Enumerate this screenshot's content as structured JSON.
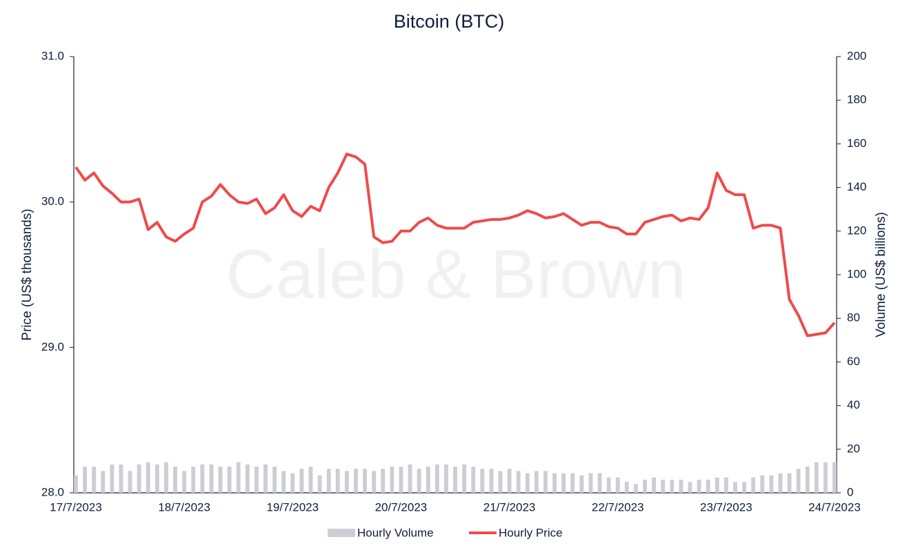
{
  "chart_data": {
    "type": "combo",
    "title": "Bitcoin (BTC)",
    "watermark": "Caleb & Brown",
    "y_label": "Price (US$ thousands)",
    "y2_label": "Volume (US$ billions)",
    "categories": [
      "17/7/2023",
      null,
      null,
      null,
      null,
      null,
      null,
      null,
      null,
      null,
      null,
      null,
      "18/7/2023",
      null,
      null,
      null,
      null,
      null,
      null,
      null,
      null,
      null,
      null,
      null,
      "19/7/2023",
      null,
      null,
      null,
      null,
      null,
      null,
      null,
      null,
      null,
      null,
      null,
      "20/7/2023",
      null,
      null,
      null,
      null,
      null,
      null,
      null,
      null,
      null,
      null,
      null,
      "21/7/2023",
      null,
      null,
      null,
      null,
      null,
      null,
      null,
      null,
      null,
      null,
      null,
      "22/7/2023",
      null,
      null,
      null,
      null,
      null,
      null,
      null,
      null,
      null,
      null,
      null,
      "23/7/2023",
      null,
      null,
      null,
      null,
      null,
      null,
      null,
      null,
      null,
      null,
      null,
      "24/7/2023"
    ],
    "series": [
      {
        "name": "Hourly Volume",
        "type": "bar",
        "axis": "y2",
        "color": "#cdced4",
        "values": [
          8,
          12,
          12,
          10,
          13,
          13,
          10,
          13,
          14,
          13,
          14,
          12,
          10,
          12,
          13,
          13,
          12,
          12,
          14,
          13,
          12,
          13,
          12,
          10,
          9,
          11,
          12,
          8,
          11,
          11,
          10,
          11,
          11,
          10,
          11,
          12,
          12,
          13,
          11,
          12,
          13,
          13,
          12,
          13,
          12,
          11,
          11,
          10,
          11,
          10,
          9,
          10,
          10,
          9,
          9,
          9,
          8,
          9,
          9,
          7,
          7,
          5,
          4,
          6,
          7,
          6,
          6,
          6,
          5,
          6,
          6,
          7,
          7,
          5,
          5,
          7,
          8,
          8,
          9,
          9,
          11,
          12,
          14,
          14,
          14
        ]
      },
      {
        "name": "Hourly Price",
        "type": "line",
        "color": "#f04a4a",
        "values": [
          30.24,
          30.15,
          30.2,
          30.11,
          30.06,
          30.0,
          30.0,
          30.02,
          29.81,
          29.86,
          29.76,
          29.73,
          29.78,
          29.82,
          30.0,
          30.04,
          30.12,
          30.05,
          30.0,
          29.99,
          30.02,
          29.92,
          29.96,
          30.05,
          29.94,
          29.9,
          29.97,
          29.94,
          30.1,
          30.2,
          30.33,
          30.31,
          30.26,
          29.76,
          29.72,
          29.73,
          29.8,
          29.8,
          29.86,
          29.89,
          29.84,
          29.82,
          29.82,
          29.82,
          29.86,
          29.87,
          29.88,
          29.88,
          29.89,
          29.91,
          29.94,
          29.92,
          29.89,
          29.9,
          29.92,
          29.88,
          29.84,
          29.86,
          29.86,
          29.83,
          29.82,
          29.78,
          29.78,
          29.86,
          29.88,
          29.9,
          29.91,
          29.87,
          29.89,
          29.88,
          29.96,
          30.2,
          30.08,
          30.05,
          30.05,
          29.82,
          29.84,
          29.84,
          29.82,
          29.33,
          29.22,
          29.08,
          29.09,
          29.1,
          29.17
        ]
      }
    ],
    "ylim": [
      28,
      31
    ],
    "yticks": [
      {
        "value": 28,
        "label": "28.0"
      },
      {
        "value": 29,
        "label": "29.0"
      },
      {
        "value": 30,
        "label": "30.0"
      },
      {
        "value": 31,
        "label": "31.0"
      }
    ],
    "y2lim": [
      0,
      200
    ],
    "y2ticks": [
      0,
      20,
      40,
      60,
      80,
      100,
      120,
      140,
      160,
      180,
      200
    ],
    "legend": "bottom"
  }
}
